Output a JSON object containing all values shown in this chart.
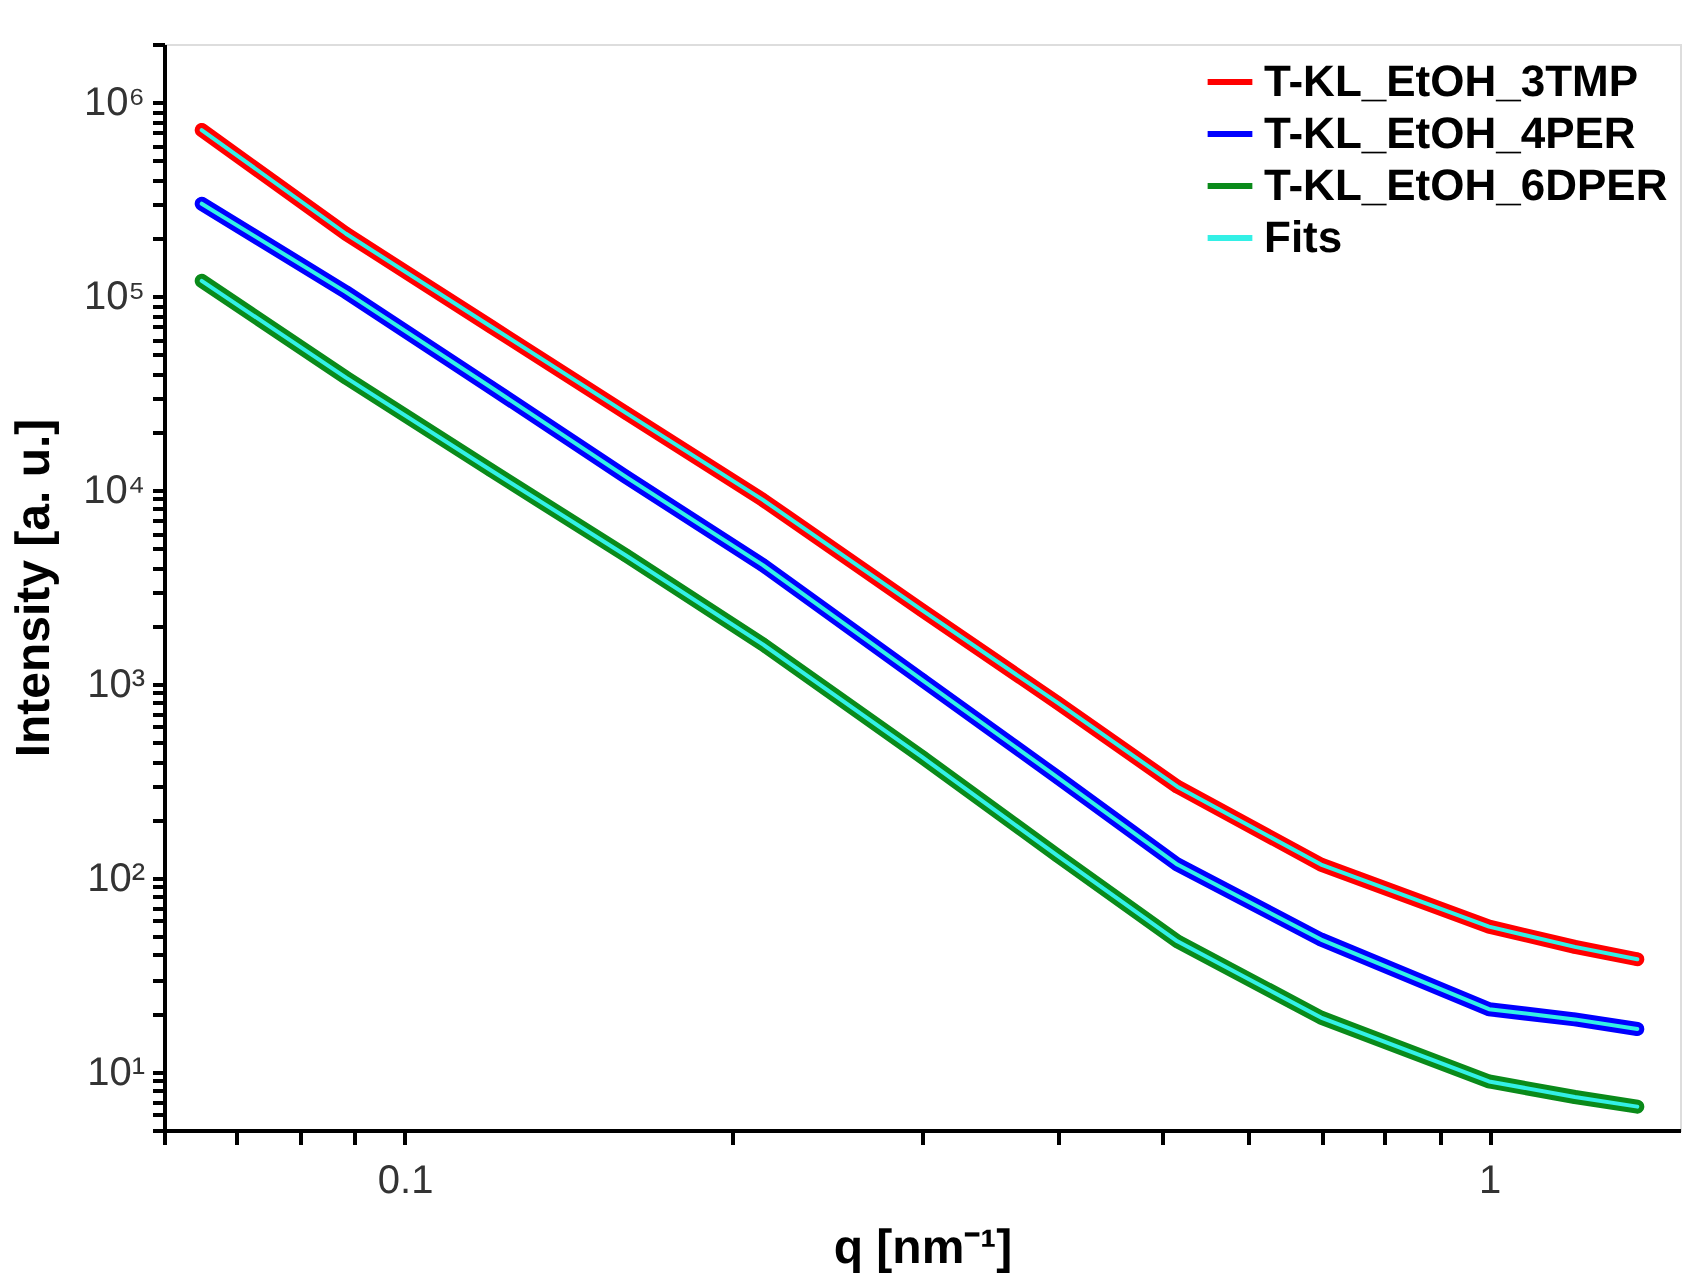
{
  "chart_data": {
    "type": "line",
    "xlabel": "q [nm⁻¹]",
    "ylabel": "Intensity [a. u.]",
    "log": "xy",
    "grid": false,
    "legend": "top right",
    "x": [
      0.065,
      0.0883,
      0.12,
      0.16,
      0.214,
      0.3,
      0.4,
      0.516,
      0.7,
      1.0,
      1.2,
      1.37
    ],
    "series": [
      {
        "name": "T-KL_EtOH_3TMP",
        "color": "#ff0000",
        "marker": "circle",
        "values": [
          720000,
          210000,
          70000,
          25000,
          8900,
          2400,
          800,
          295,
          117,
          56,
          44,
          38
        ]
      },
      {
        "name": "T-KL_EtOH_4PER",
        "color": "#0000ff",
        "marker": "circle",
        "values": [
          300000,
          105000,
          34000,
          11700,
          4100,
          1050,
          330,
          117,
          48,
          21,
          18.6,
          16.6
        ]
      },
      {
        "name": "T-KL_EtOH_6DPER",
        "color": "#0a8a1a",
        "marker": "circle",
        "values": [
          120000,
          38000,
          12700,
          4600,
          1600,
          420,
          130,
          47,
          19,
          8.9,
          7.4,
          6.6
        ]
      },
      {
        "name": "Fits",
        "color": "#33f0e6",
        "marker": "none",
        "values": [
          720000,
          210000,
          70000,
          25000,
          8900,
          2400,
          800,
          295,
          117,
          56,
          44,
          38
        ]
      },
      {
        "color": "#33f0e6",
        "marker": "none",
        "values": [
          300000,
          105000,
          34000,
          11700,
          4100,
          1050,
          330,
          117,
          48,
          21,
          18.6,
          16.6
        ]
      },
      {
        "color": "#33f0e6",
        "marker": "none",
        "values": [
          120000,
          38000,
          12700,
          4600,
          1600,
          420,
          130,
          47,
          19,
          8.9,
          7.4,
          6.6
        ]
      }
    ],
    "xlim": [
      0.06,
      1.5
    ],
    "xticks": [
      {
        "value": 0.06,
        "label": null
      },
      {
        "value": 0.07,
        "label": null
      },
      {
        "value": 0.08,
        "label": null
      },
      {
        "value": 0.09,
        "label": null
      },
      0.1,
      {
        "value": 0.2,
        "label": null
      },
      {
        "value": 0.3,
        "label": null
      },
      {
        "value": 0.4,
        "label": null
      },
      {
        "value": 0.5,
        "label": null
      },
      {
        "value": 0.6,
        "label": null
      },
      {
        "value": 0.7,
        "label": null
      },
      {
        "value": 0.8,
        "label": null
      },
      {
        "value": 0.9,
        "label": null
      },
      1
    ],
    "ylim": [
      5,
      2000000
    ],
    "yticks": [
      {
        "value": 5,
        "label": null
      },
      {
        "value": 6,
        "label": null
      },
      {
        "value": 7,
        "label": null
      },
      {
        "value": 8,
        "label": null
      },
      {
        "value": 9,
        "label": null
      },
      {
        "value": 10,
        "label": "10¹"
      },
      {
        "value": 20,
        "label": null
      },
      {
        "value": 30,
        "label": null
      },
      {
        "value": 40,
        "label": null
      },
      {
        "value": 50,
        "label": null
      },
      {
        "value": 60,
        "label": null
      },
      {
        "value": 70,
        "label": null
      },
      {
        "value": 80,
        "label": null
      },
      {
        "value": 90,
        "label": null
      },
      {
        "value": 100,
        "label": "10²"
      },
      {
        "value": 200,
        "label": null
      },
      {
        "value": 300,
        "label": null
      },
      {
        "value": 400,
        "label": null
      },
      {
        "value": 500,
        "label": null
      },
      {
        "value": 600,
        "label": null
      },
      {
        "value": 700,
        "label": null
      },
      {
        "value": 800,
        "label": null
      },
      {
        "value": 900,
        "label": null
      },
      {
        "value": 1000,
        "label": "10³"
      },
      {
        "value": 2000,
        "label": null
      },
      {
        "value": 3000,
        "label": null
      },
      {
        "value": 4000,
        "label": null
      },
      {
        "value": 5000,
        "label": null
      },
      {
        "value": 6000,
        "label": null
      },
      {
        "value": 7000,
        "label": null
      },
      {
        "value": 8000,
        "label": null
      },
      {
        "value": 9000,
        "label": null
      },
      {
        "value": 10000,
        "label": "10⁴"
      },
      {
        "value": 20000,
        "label": null
      },
      {
        "value": 30000,
        "label": null
      },
      {
        "value": 40000,
        "label": null
      },
      {
        "value": 50000,
        "label": null
      },
      {
        "value": 60000,
        "label": null
      },
      {
        "value": 70000,
        "label": null
      },
      {
        "value": 80000,
        "label": null
      },
      {
        "value": 90000,
        "label": null
      },
      {
        "value": 100000,
        "label": "10⁵"
      },
      {
        "value": 200000,
        "label": null
      },
      {
        "value": 300000,
        "label": null
      },
      {
        "value": 400000,
        "label": null
      },
      {
        "value": 500000,
        "label": null
      },
      {
        "value": 600000,
        "label": null
      },
      {
        "value": 700000,
        "label": null
      },
      {
        "value": 800000,
        "label": null
      },
      {
        "value": 900000,
        "label": null
      },
      {
        "value": 1000000,
        "label": "10⁶"
      },
      {
        "value": 2000000,
        "label": null
      }
    ]
  }
}
